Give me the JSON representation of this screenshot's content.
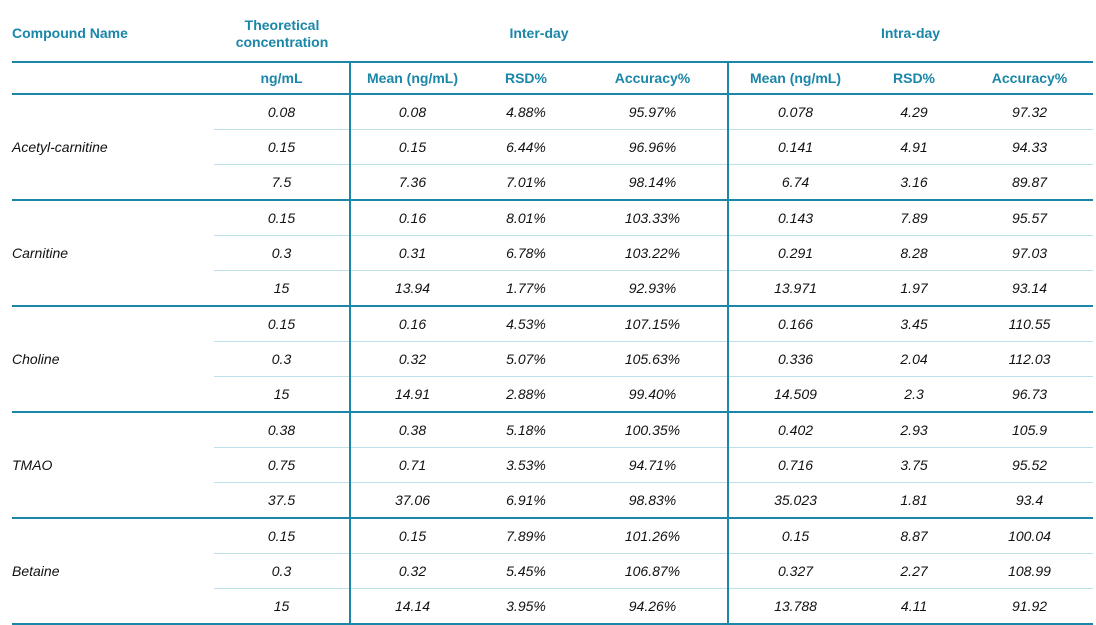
{
  "headers": {
    "compound": "Compound Name",
    "theoretical": "Theoretical concentration",
    "inter": "Inter-day",
    "intra": "Intra-day",
    "unit": "ng/mL",
    "mean": "Mean (ng/mL)",
    "rsd": "RSD%",
    "accuracy": "Accuracy%"
  },
  "groups": [
    {
      "name": "Acetyl-carnitine",
      "rows": [
        [
          "0.08",
          "0.08",
          "4.88%",
          "95.97%",
          "0.078",
          "4.29",
          "97.32"
        ],
        [
          "0.15",
          "0.15",
          "6.44%",
          "96.96%",
          "0.141",
          "4.91",
          "94.33"
        ],
        [
          "7.5",
          "7.36",
          "7.01%",
          "98.14%",
          "6.74",
          "3.16",
          "89.87"
        ]
      ]
    },
    {
      "name": "Carnitine",
      "rows": [
        [
          "0.15",
          "0.16",
          "8.01%",
          "103.33%",
          "0.143",
          "7.89",
          "95.57"
        ],
        [
          "0.3",
          "0.31",
          "6.78%",
          "103.22%",
          "0.291",
          "8.28",
          "97.03"
        ],
        [
          "15",
          "13.94",
          "1.77%",
          "92.93%",
          "13.971",
          "1.97",
          "93.14"
        ]
      ]
    },
    {
      "name": "Choline",
      "rows": [
        [
          "0.15",
          "0.16",
          "4.53%",
          "107.15%",
          "0.166",
          "3.45",
          "110.55"
        ],
        [
          "0.3",
          "0.32",
          "5.07%",
          "105.63%",
          "0.336",
          "2.04",
          "112.03"
        ],
        [
          "15",
          "14.91",
          "2.88%",
          "99.40%",
          "14.509",
          "2.3",
          "96.73"
        ]
      ]
    },
    {
      "name": "TMAO",
      "rows": [
        [
          "0.38",
          "0.38",
          "5.18%",
          "100.35%",
          "0.402",
          "2.93",
          "105.9"
        ],
        [
          "0.75",
          "0.71",
          "3.53%",
          "94.71%",
          "0.716",
          "3.75",
          "95.52"
        ],
        [
          "37.5",
          "37.06",
          "6.91%",
          "98.83%",
          "35.023",
          "1.81",
          "93.4"
        ]
      ]
    },
    {
      "name": "Betaine",
      "rows": [
        [
          "0.15",
          "0.15",
          "7.89%",
          "101.26%",
          "0.15",
          "8.87",
          "100.04"
        ],
        [
          "0.3",
          "0.32",
          "5.45%",
          "106.87%",
          "0.327",
          "2.27",
          "108.99"
        ],
        [
          "15",
          "14.14",
          "3.95%",
          "94.26%",
          "13.788",
          "4.11",
          "91.92"
        ]
      ]
    }
  ]
}
